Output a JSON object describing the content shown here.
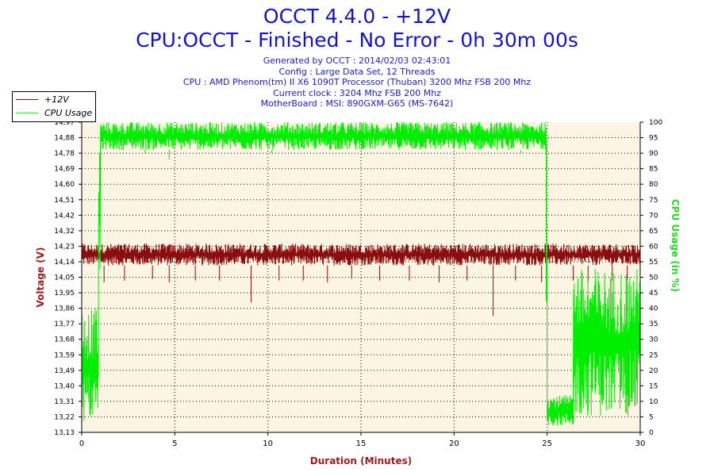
{
  "header": {
    "title": "OCCT 4.4.0 - +12V",
    "subtitle": "CPU:OCCT - Finished - No Error - 0h 30m 00s",
    "info": [
      "Generated by OCCT : 2014/02/03 02:43:01",
      "Config : Large Data Set, 12 Threads",
      "CPU : AMD Phenom(tm) II X6 1090T Processor (Thuban) 3200 Mhz FSB 200 Mhz",
      "Current clock : 3204 Mhz FSB 200 Mhz",
      "MotherBoard : MSI: 890GXM-G65 (MS-7642)"
    ]
  },
  "colors": {
    "voltage": "#8b0e0e",
    "cpu": "#00ee00",
    "plot_bg": "#fdf5e3",
    "axis_left": "#9c1c1c",
    "axis_right": "#22dd22"
  },
  "chart_data": {
    "type": "line",
    "xlabel": "Duration (Minutes)",
    "ylabel_left": "Voltage (V)",
    "ylabel_right": "CPU Usage (in %)",
    "xlim": [
      0,
      30
    ],
    "ylim_left": [
      13.13,
      14.97
    ],
    "ylim_right": [
      0,
      100
    ],
    "x_ticks": [
      "0",
      "5",
      "10",
      "15",
      "20",
      "25",
      "30"
    ],
    "y_left_ticks": [
      "13,13",
      "13,22",
      "13,31",
      "13,40",
      "13,49",
      "13,59",
      "13,68",
      "13,77",
      "13,86",
      "13,95",
      "14,05",
      "14,14",
      "14,23",
      "14,32",
      "14,42",
      "14,51",
      "14,60",
      "14,69",
      "14,78",
      "14,88",
      "14,97"
    ],
    "y_right_ticks": [
      "0",
      "5",
      "10",
      "15",
      "20",
      "25",
      "30",
      "35",
      "40",
      "45",
      "50",
      "55",
      "60",
      "65",
      "70",
      "75",
      "80",
      "85",
      "90",
      "95",
      "100"
    ],
    "grid": true,
    "legend_position": "top-left",
    "series": [
      {
        "name": "+12V",
        "axis": "left",
        "segments": [
          {
            "from": 0,
            "to": 30,
            "low": 14.12,
            "high": 14.25
          }
        ],
        "dips": [
          [
            1.2,
            14.02
          ],
          [
            2.3,
            14.03
          ],
          [
            3.8,
            14.04
          ],
          [
            4.7,
            14.02
          ],
          [
            6.1,
            14.03
          ],
          [
            7.4,
            14.03
          ],
          [
            9.1,
            13.9
          ],
          [
            10.6,
            14.03
          ],
          [
            11.9,
            14.03
          ],
          [
            13.2,
            14.02
          ],
          [
            14.5,
            14.04
          ],
          [
            16.0,
            14.03
          ],
          [
            17.6,
            14.03
          ],
          [
            19.2,
            14.02
          ],
          [
            20.7,
            14.03
          ],
          [
            22.1,
            13.82
          ],
          [
            23.3,
            14.03
          ],
          [
            24.7,
            14.02
          ],
          [
            26.4,
            14.03
          ],
          [
            27.2,
            14.02
          ],
          [
            28.5,
            14.03
          ],
          [
            29.3,
            14.03
          ]
        ]
      },
      {
        "name": "CPU Usage",
        "axis": "right",
        "segments": [
          {
            "from": 0,
            "to": 0.9,
            "low": 3,
            "high": 40
          },
          {
            "from": 0.9,
            "to": 1.0,
            "low": 40,
            "high": 100
          },
          {
            "from": 1.0,
            "to": 24.95,
            "low": 91,
            "high": 100
          },
          {
            "from": 24.95,
            "to": 25.0,
            "low": 2,
            "high": 97
          },
          {
            "from": 25.0,
            "to": 26.4,
            "low": 2,
            "high": 12
          },
          {
            "from": 26.4,
            "to": 30,
            "low": 5,
            "high": 53
          }
        ],
        "dips": [
          [
            4.7,
            88
          ],
          [
            3.4,
            90
          ],
          [
            10.2,
            90
          ],
          [
            15.8,
            91
          ],
          [
            21.4,
            91
          ],
          [
            23.6,
            90
          ]
        ]
      }
    ]
  }
}
